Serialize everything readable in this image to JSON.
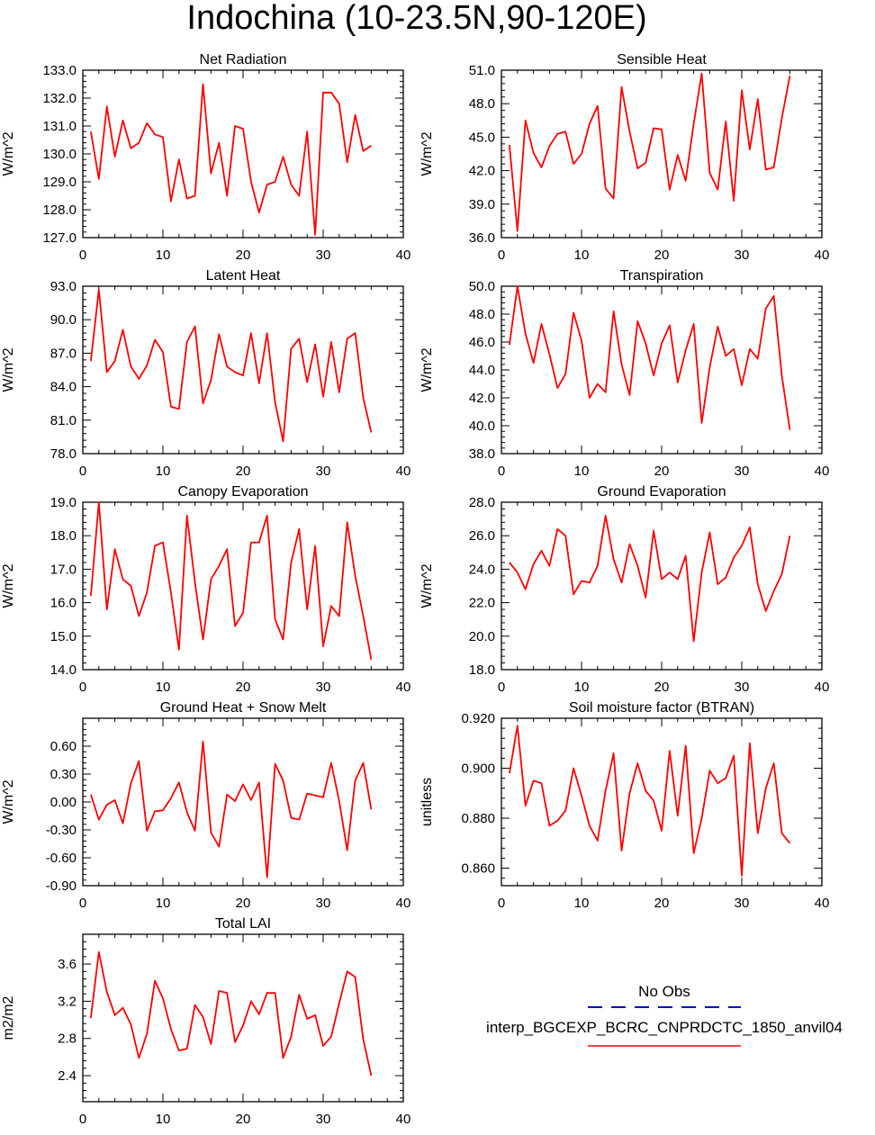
{
  "figure": {
    "title": "Indochina (10-23.5N,90-120E)"
  },
  "legend": {
    "entries": [
      {
        "label": "No Obs",
        "color": "#0000cc",
        "style": "dashed"
      },
      {
        "label": "interp_BGCEXP_BCRC_CNPRDCTC_1850_anvil04",
        "color": "#ff0000",
        "style": "solid"
      }
    ]
  },
  "chart_data": [
    {
      "type": "line",
      "title": "Net Radiation",
      "ylabel": "W/m^2",
      "xlim": [
        0,
        40
      ],
      "ylim": [
        127.0,
        133.0
      ],
      "xticks": [
        "0",
        "10",
        "20",
        "30",
        "40"
      ],
      "yticks": [
        "127.0",
        "128.0",
        "129.0",
        "130.0",
        "131.0",
        "132.0",
        "133.0"
      ],
      "color": "#ff0000",
      "x": [
        1,
        2,
        3,
        4,
        5,
        6,
        7,
        8,
        9,
        10,
        11,
        12,
        13,
        14,
        15,
        16,
        17,
        18,
        19,
        20,
        21,
        22,
        23,
        24,
        25,
        26,
        27,
        28,
        29,
        30,
        31,
        32,
        33,
        34,
        35,
        36
      ],
      "values": [
        130.8,
        129.1,
        131.7,
        129.9,
        131.2,
        130.2,
        130.4,
        131.1,
        130.7,
        130.6,
        128.3,
        129.8,
        128.4,
        128.5,
        132.5,
        129.3,
        130.4,
        128.5,
        131.0,
        130.9,
        129.0,
        127.9,
        128.9,
        129.0,
        129.9,
        128.9,
        128.5,
        130.8,
        127.1,
        132.2,
        132.2,
        131.8,
        129.7,
        131.4,
        130.1,
        130.3
      ]
    },
    {
      "type": "line",
      "title": "Sensible Heat",
      "ylabel": "W/m^2",
      "xlim": [
        0,
        40
      ],
      "ylim": [
        36.0,
        51.0
      ],
      "xticks": [
        "0",
        "10",
        "20",
        "30",
        "40"
      ],
      "yticks": [
        "36.0",
        "39.0",
        "42.0",
        "45.0",
        "48.0",
        "51.0"
      ],
      "color": "#ff0000",
      "x": [
        1,
        2,
        3,
        4,
        5,
        6,
        7,
        8,
        9,
        10,
        11,
        12,
        13,
        14,
        15,
        16,
        17,
        18,
        19,
        20,
        21,
        22,
        23,
        24,
        25,
        26,
        27,
        28,
        29,
        30,
        31,
        32,
        33,
        34,
        35,
        36
      ],
      "values": [
        44.3,
        36.6,
        46.5,
        43.6,
        42.3,
        44.2,
        45.3,
        45.5,
        42.6,
        43.5,
        46.2,
        47.8,
        40.4,
        39.5,
        49.5,
        45.5,
        42.2,
        42.7,
        45.8,
        45.7,
        40.3,
        43.4,
        41.1,
        46.2,
        50.7,
        41.8,
        40.3,
        46.4,
        39.3,
        49.2,
        43.9,
        48.4,
        42.1,
        42.3,
        46.7,
        50.5
      ]
    },
    {
      "type": "line",
      "title": "Latent Heat",
      "ylabel": "W/m^2",
      "xlim": [
        0,
        40
      ],
      "ylim": [
        78.0,
        93.0
      ],
      "xticks": [
        "0",
        "10",
        "20",
        "30",
        "40"
      ],
      "yticks": [
        "78.0",
        "81.0",
        "84.0",
        "87.0",
        "90.0",
        "93.0"
      ],
      "color": "#ff0000",
      "x": [
        1,
        2,
        3,
        4,
        5,
        6,
        7,
        8,
        9,
        10,
        11,
        12,
        13,
        14,
        15,
        16,
        17,
        18,
        19,
        20,
        21,
        22,
        23,
        24,
        25,
        26,
        27,
        28,
        29,
        30,
        31,
        32,
        33,
        34,
        35,
        36
      ],
      "values": [
        86.3,
        92.7,
        85.3,
        86.3,
        89.1,
        85.8,
        84.7,
        85.9,
        88.2,
        87.1,
        82.2,
        82.0,
        88.0,
        89.4,
        82.5,
        84.6,
        88.7,
        85.8,
        85.3,
        85.0,
        88.8,
        84.3,
        88.8,
        82.6,
        79.1,
        87.4,
        88.3,
        84.4,
        87.8,
        83.1,
        88.0,
        83.5,
        88.3,
        88.8,
        83.0,
        79.9
      ]
    },
    {
      "type": "line",
      "title": "Transpiration",
      "ylabel": "W/m^2",
      "xlim": [
        0,
        40
      ],
      "ylim": [
        38.0,
        50.0
      ],
      "xticks": [
        "0",
        "10",
        "20",
        "30",
        "40"
      ],
      "yticks": [
        "38.0",
        "40.0",
        "42.0",
        "44.0",
        "46.0",
        "48.0",
        "50.0"
      ],
      "color": "#ff0000",
      "x": [
        1,
        2,
        3,
        4,
        5,
        6,
        7,
        8,
        9,
        10,
        11,
        12,
        13,
        14,
        15,
        16,
        17,
        18,
        19,
        20,
        21,
        22,
        23,
        24,
        25,
        26,
        27,
        28,
        29,
        30,
        31,
        32,
        33,
        34,
        35,
        36
      ],
      "values": [
        45.8,
        50.0,
        46.6,
        44.5,
        47.3,
        45.1,
        42.7,
        43.7,
        48.1,
        46.1,
        42.0,
        43.0,
        42.4,
        48.2,
        44.4,
        42.2,
        47.5,
        45.9,
        43.6,
        45.9,
        47.2,
        43.1,
        45.4,
        47.3,
        40.2,
        44.2,
        47.1,
        45.0,
        45.5,
        42.9,
        45.5,
        44.8,
        48.4,
        49.3,
        43.6,
        39.7
      ]
    },
    {
      "type": "line",
      "title": "Canopy Evaporation",
      "ylabel": "W/m^2",
      "xlim": [
        0,
        40
      ],
      "ylim": [
        14.0,
        19.0
      ],
      "xticks": [
        "0",
        "10",
        "20",
        "30",
        "40"
      ],
      "yticks": [
        "14.0",
        "15.0",
        "16.0",
        "17.0",
        "18.0",
        "19.0"
      ],
      "color": "#ff0000",
      "x": [
        1,
        2,
        3,
        4,
        5,
        6,
        7,
        8,
        9,
        10,
        11,
        12,
        13,
        14,
        15,
        16,
        17,
        18,
        19,
        20,
        21,
        22,
        23,
        24,
        25,
        26,
        27,
        28,
        29,
        30,
        31,
        32,
        33,
        34,
        35,
        36
      ],
      "values": [
        16.2,
        19.0,
        15.8,
        17.6,
        16.7,
        16.5,
        15.6,
        16.3,
        17.7,
        17.8,
        16.3,
        14.6,
        18.6,
        16.6,
        14.9,
        16.7,
        17.1,
        17.6,
        15.3,
        15.7,
        17.8,
        17.8,
        18.6,
        15.5,
        14.9,
        17.2,
        18.2,
        15.8,
        17.7,
        14.7,
        15.9,
        15.6,
        18.4,
        16.8,
        15.6,
        14.3
      ]
    },
    {
      "type": "line",
      "title": "Ground Evaporation",
      "ylabel": "W/m^2",
      "xlim": [
        0,
        40
      ],
      "ylim": [
        18.0,
        28.0
      ],
      "xticks": [
        "0",
        "10",
        "20",
        "30",
        "40"
      ],
      "yticks": [
        "18.0",
        "20.0",
        "22.0",
        "24.0",
        "26.0",
        "28.0"
      ],
      "color": "#ff0000",
      "x": [
        1,
        2,
        3,
        4,
        5,
        6,
        7,
        8,
        9,
        10,
        11,
        12,
        13,
        14,
        15,
        16,
        17,
        18,
        19,
        20,
        21,
        22,
        23,
        24,
        25,
        26,
        27,
        28,
        29,
        30,
        31,
        32,
        33,
        34,
        35,
        36
      ],
      "values": [
        24.4,
        23.8,
        22.8,
        24.3,
        25.1,
        24.2,
        26.4,
        26.0,
        22.5,
        23.3,
        23.2,
        24.2,
        27.2,
        24.6,
        23.2,
        25.5,
        24.2,
        22.3,
        26.3,
        23.4,
        23.8,
        23.4,
        24.8,
        19.7,
        23.8,
        26.2,
        23.1,
        23.5,
        24.7,
        25.4,
        26.5,
        23.1,
        21.5,
        22.7,
        23.7,
        26.0
      ]
    },
    {
      "type": "line",
      "title": "Ground Heat + Snow Melt",
      "ylabel": "W/m^2",
      "xlim": [
        0,
        40
      ],
      "ylim": [
        -0.9,
        0.9
      ],
      "xticks": [
        "0",
        "10",
        "20",
        "30",
        "40"
      ],
      "yticks": [
        "-0.90",
        "-0.60",
        "-0.30",
        "0.00",
        "0.30",
        "0.60"
      ],
      "color": "#ff0000",
      "x": [
        1,
        2,
        3,
        4,
        5,
        6,
        7,
        8,
        9,
        10,
        11,
        12,
        13,
        14,
        15,
        16,
        17,
        18,
        19,
        20,
        21,
        22,
        23,
        24,
        25,
        26,
        27,
        28,
        29,
        30,
        31,
        32,
        33,
        34,
        35,
        36
      ],
      "values": [
        0.08,
        -0.19,
        -0.03,
        0.02,
        -0.23,
        0.2,
        0.44,
        -0.31,
        -0.1,
        -0.09,
        0.04,
        0.21,
        -0.11,
        -0.31,
        0.65,
        -0.33,
        -0.48,
        0.08,
        0.01,
        0.19,
        0.02,
        0.21,
        -0.81,
        0.41,
        0.23,
        -0.17,
        -0.19,
        0.09,
        0.07,
        0.05,
        0.42,
        0.01,
        -0.52,
        0.23,
        0.42,
        -0.08
      ]
    },
    {
      "type": "line",
      "title": "Soil moisture factor (BTRAN)",
      "ylabel": "unitless",
      "xlim": [
        0,
        40
      ],
      "ylim": [
        0.853,
        0.92
      ],
      "xticks": [
        "0",
        "10",
        "20",
        "30",
        "40"
      ],
      "yticks": [
        "0.860",
        "0.880",
        "0.900",
        "0.920"
      ],
      "color": "#ff0000",
      "x": [
        1,
        2,
        3,
        4,
        5,
        6,
        7,
        8,
        9,
        10,
        11,
        12,
        13,
        14,
        15,
        16,
        17,
        18,
        19,
        20,
        21,
        22,
        23,
        24,
        25,
        26,
        27,
        28,
        29,
        30,
        31,
        32,
        33,
        34,
        35,
        36
      ],
      "values": [
        0.898,
        0.917,
        0.885,
        0.895,
        0.894,
        0.877,
        0.879,
        0.883,
        0.9,
        0.889,
        0.877,
        0.871,
        0.891,
        0.906,
        0.867,
        0.89,
        0.902,
        0.891,
        0.887,
        0.875,
        0.907,
        0.881,
        0.909,
        0.866,
        0.88,
        0.899,
        0.894,
        0.896,
        0.905,
        0.857,
        0.91,
        0.874,
        0.892,
        0.902,
        0.874,
        0.87
      ]
    },
    {
      "type": "line",
      "title": "Total LAI",
      "ylabel": "m2/m2",
      "xlim": [
        0,
        40
      ],
      "ylim": [
        2.12,
        3.92
      ],
      "xticks": [
        "0",
        "10",
        "20",
        "30",
        "40"
      ],
      "yticks": [
        "2.4",
        "2.8",
        "3.2",
        "3.6"
      ],
      "color": "#ff0000",
      "x": [
        1,
        2,
        3,
        4,
        5,
        6,
        7,
        8,
        9,
        10,
        11,
        12,
        13,
        14,
        15,
        16,
        17,
        18,
        19,
        20,
        21,
        22,
        23,
        24,
        25,
        26,
        27,
        28,
        29,
        30,
        31,
        32,
        33,
        34,
        35,
        36
      ],
      "values": [
        3.02,
        3.73,
        3.3,
        3.05,
        3.13,
        2.95,
        2.59,
        2.85,
        3.42,
        3.23,
        2.9,
        2.67,
        2.69,
        3.16,
        3.03,
        2.74,
        3.31,
        3.29,
        2.76,
        2.94,
        3.2,
        3.06,
        3.29,
        3.29,
        2.59,
        2.82,
        3.27,
        3.01,
        3.05,
        2.72,
        2.82,
        3.18,
        3.52,
        3.46,
        2.79,
        2.4
      ]
    }
  ]
}
